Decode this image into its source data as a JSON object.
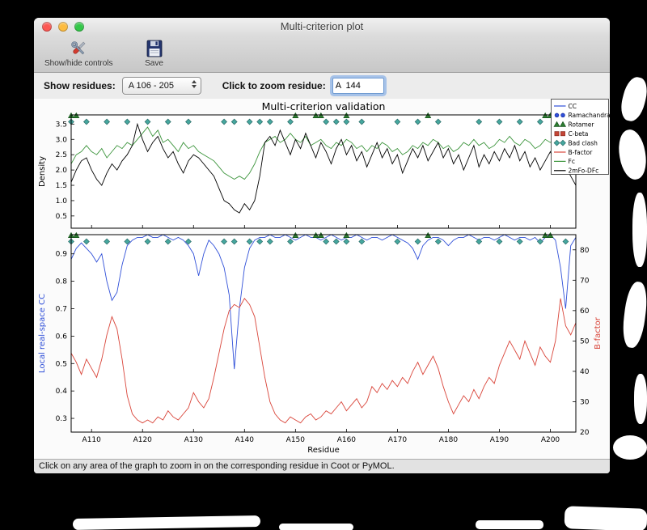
{
  "window": {
    "title": "Multi-criterion plot",
    "traffic_lights": {
      "close": "#fc5753",
      "minimize": "#fdbc40",
      "zoom": "#33c748"
    },
    "toolbar": {
      "show_hide_label": "Show/hide controls",
      "save_label": "Save"
    },
    "controls": {
      "show_residues_label": "Show residues:",
      "residue_range_value": "A 106 - 205",
      "zoom_label": "Click to zoom residue:",
      "zoom_value": "A  144"
    },
    "status_text": "Click on any area of the graph to zoom in on the corresponding residue in Coot or PyMOL."
  },
  "chart_data": {
    "type": "line",
    "title": "Multi-criterion validation",
    "xlabel": "Residue",
    "x_range": [
      106,
      205
    ],
    "x_ticks": [
      {
        "value": 110,
        "label": "A110"
      },
      {
        "value": 120,
        "label": "A120"
      },
      {
        "value": 130,
        "label": "A130"
      },
      {
        "value": 140,
        "label": "A140"
      },
      {
        "value": 150,
        "label": "A150"
      },
      {
        "value": 160,
        "label": "A160"
      },
      {
        "value": 170,
        "label": "A170"
      },
      {
        "value": 180,
        "label": "A180"
      },
      {
        "value": 190,
        "label": "A190"
      },
      {
        "value": 200,
        "label": "A200"
      }
    ],
    "top_plot": {
      "ylabel": "Density",
      "ylim": [
        0.1,
        3.8
      ],
      "yticks": [
        0.5,
        1.0,
        1.5,
        2.0,
        2.5,
        3.0,
        3.5
      ],
      "ytick_labels": [
        "0.5",
        "1.0",
        "1.5",
        "2.0",
        "2.5",
        "3.0",
        "3.5"
      ],
      "series": [
        {
          "name": "Fc",
          "color": "#3d953d",
          "values": [
            2.2,
            2.5,
            2.6,
            2.8,
            2.6,
            2.5,
            2.7,
            2.4,
            2.6,
            2.8,
            2.7,
            2.9,
            2.8,
            3.0,
            3.2,
            3.4,
            3.1,
            3.3,
            2.9,
            3.0,
            2.8,
            2.6,
            2.9,
            2.7,
            2.8,
            2.6,
            2.5,
            2.4,
            2.3,
            2.1,
            1.9,
            1.8,
            1.7,
            1.8,
            1.7,
            1.9,
            2.2,
            2.6,
            2.9,
            3.0,
            3.1,
            2.9,
            3.0,
            3.2,
            3.0,
            2.9,
            3.1,
            2.8,
            2.9,
            3.0,
            2.8,
            2.7,
            2.9,
            2.8,
            3.0,
            2.9,
            2.7,
            2.8,
            2.6,
            2.8,
            2.7,
            2.9,
            2.8,
            2.6,
            2.7,
            2.5,
            2.6,
            2.8,
            2.7,
            2.9,
            2.8,
            3.0,
            2.9,
            2.7,
            2.8,
            2.6,
            2.7,
            2.9,
            2.8,
            3.0,
            2.8,
            2.9,
            2.7,
            2.8,
            3.0,
            2.9,
            3.1,
            2.9,
            2.8,
            3.0,
            2.9,
            2.7,
            2.8,
            3.0,
            2.9,
            3.1,
            2.8,
            2.9,
            2.6,
            2.4
          ]
        },
        {
          "name": "2mFo-DFc",
          "color": "#000000",
          "values": [
            1.6,
            2.0,
            2.3,
            2.4,
            2.0,
            1.7,
            1.5,
            1.9,
            2.2,
            2.0,
            2.3,
            2.5,
            2.8,
            3.5,
            3.0,
            2.6,
            2.9,
            3.1,
            2.7,
            2.4,
            2.6,
            2.2,
            1.9,
            2.3,
            2.5,
            2.4,
            2.2,
            2.0,
            1.8,
            1.4,
            1.0,
            0.9,
            0.7,
            0.6,
            0.9,
            0.7,
            1.0,
            1.8,
            2.9,
            3.1,
            2.8,
            3.3,
            2.9,
            2.5,
            3.0,
            2.7,
            3.2,
            2.8,
            2.4,
            2.9,
            2.6,
            2.2,
            2.7,
            3.0,
            2.5,
            2.8,
            2.3,
            2.6,
            2.1,
            2.5,
            2.9,
            2.4,
            2.7,
            2.2,
            2.5,
            1.9,
            2.3,
            2.7,
            2.4,
            2.8,
            2.3,
            2.6,
            2.9,
            2.4,
            2.7,
            2.2,
            2.5,
            2.0,
            2.4,
            2.8,
            2.1,
            2.5,
            2.2,
            2.6,
            2.3,
            2.7,
            2.4,
            2.8,
            2.3,
            2.6,
            2.1,
            2.4,
            2.0,
            2.3,
            2.6,
            2.2,
            2.5,
            2.1,
            1.8,
            1.5
          ]
        }
      ]
    },
    "bottom_plot": {
      "left_ylabel": "Local real-space CC",
      "left_color": "#2f4fd8",
      "left_ylim": [
        0.25,
        0.97
      ],
      "left_yticks": [
        0.3,
        0.4,
        0.5,
        0.6,
        0.7,
        0.8,
        0.9
      ],
      "left_ytick_labels": [
        "0.3",
        "0.4",
        "0.5",
        "0.6",
        "0.7",
        "0.8",
        "0.9"
      ],
      "right_ylabel": "B-factor",
      "right_color": "#d9453a",
      "right_ylim": [
        20,
        85
      ],
      "right_yticks": [
        20,
        30,
        40,
        50,
        60,
        70,
        80
      ],
      "right_ytick_labels": [
        "20",
        "30",
        "40",
        "50",
        "60",
        "70",
        "80"
      ],
      "series": [
        {
          "name": "CC",
          "axis": "left",
          "color": "#2f4fd8",
          "values": [
            0.88,
            0.92,
            0.94,
            0.92,
            0.9,
            0.87,
            0.9,
            0.8,
            0.73,
            0.76,
            0.86,
            0.93,
            0.95,
            0.96,
            0.96,
            0.97,
            0.96,
            0.96,
            0.97,
            0.96,
            0.95,
            0.96,
            0.95,
            0.93,
            0.9,
            0.82,
            0.9,
            0.95,
            0.93,
            0.9,
            0.85,
            0.75,
            0.48,
            0.7,
            0.85,
            0.92,
            0.95,
            0.96,
            0.96,
            0.97,
            0.96,
            0.96,
            0.97,
            0.96,
            0.95,
            0.96,
            0.97,
            0.96,
            0.96,
            0.95,
            0.96,
            0.97,
            0.96,
            0.95,
            0.96,
            0.96,
            0.97,
            0.96,
            0.95,
            0.96,
            0.96,
            0.95,
            0.96,
            0.97,
            0.96,
            0.95,
            0.94,
            0.92,
            0.88,
            0.93,
            0.95,
            0.96,
            0.96,
            0.95,
            0.93,
            0.95,
            0.96,
            0.96,
            0.97,
            0.96,
            0.95,
            0.96,
            0.96,
            0.95,
            0.96,
            0.97,
            0.96,
            0.95,
            0.96,
            0.96,
            0.95,
            0.96,
            0.94,
            0.96,
            0.97,
            0.95,
            0.85,
            0.7,
            0.93,
            0.96
          ]
        },
        {
          "name": "B-factor",
          "axis": "right",
          "color": "#d9453a",
          "values": [
            46,
            43,
            39,
            44,
            41,
            38,
            44,
            52,
            58,
            54,
            44,
            32,
            26,
            24,
            23,
            24,
            23,
            25,
            24,
            27,
            25,
            24,
            26,
            28,
            33,
            30,
            28,
            31,
            38,
            46,
            54,
            60,
            62,
            61,
            64,
            62,
            58,
            48,
            38,
            30,
            26,
            24,
            23,
            25,
            24,
            23,
            25,
            26,
            24,
            25,
            27,
            26,
            28,
            30,
            27,
            29,
            31,
            28,
            30,
            35,
            33,
            36,
            34,
            37,
            35,
            38,
            36,
            40,
            43,
            39,
            42,
            45,
            41,
            35,
            30,
            26,
            29,
            32,
            30,
            34,
            31,
            35,
            38,
            36,
            42,
            46,
            50,
            47,
            44,
            50,
            46,
            42,
            48,
            45,
            43,
            50,
            64,
            55,
            52,
            56
          ]
        }
      ],
      "markers": [
        {
          "name": "Rotamer",
          "shape": "triangle",
          "color": "#2e7d32",
          "edge": "#14521a",
          "residues": [
            106,
            107,
            150,
            154,
            155,
            160,
            176,
            199,
            200
          ]
        },
        {
          "name": "Bad clash",
          "shape": "diamond",
          "color": "#46a79f",
          "edge": "#2a6b66",
          "residues": [
            106,
            109,
            113,
            117,
            121,
            125,
            129,
            136,
            138,
            141,
            143,
            145,
            149,
            156,
            158,
            160,
            163,
            170,
            174,
            178,
            186,
            190,
            194,
            198,
            203
          ]
        },
        {
          "name": "Ramachandran",
          "shape": "circle",
          "color": "#2f4fd8",
          "edge": "#1c2f9e",
          "residues": []
        },
        {
          "name": "C-beta",
          "shape": "square",
          "color": "#c44536",
          "edge": "#8c2b20",
          "residues": []
        }
      ]
    },
    "legend": {
      "position": "upper right",
      "entries": [
        {
          "label": "CC",
          "type": "line",
          "color": "#2f4fd8"
        },
        {
          "label": "Ramachandran",
          "type": "circle",
          "color": "#2f4fd8",
          "edge": "#1c2f9e"
        },
        {
          "label": "Rotamer",
          "type": "triangle",
          "color": "#2e7d32",
          "edge": "#14521a"
        },
        {
          "label": "C-beta",
          "type": "square",
          "color": "#c44536",
          "edge": "#8c2b20"
        },
        {
          "label": "Bad clash",
          "type": "diamond",
          "color": "#46a79f",
          "edge": "#2a6b66"
        },
        {
          "label": "B-factor",
          "type": "line",
          "color": "#d9453a"
        },
        {
          "label": "Fc",
          "type": "line",
          "color": "#3d953d"
        },
        {
          "label": "2mFo-DFc",
          "type": "line",
          "color": "#000000"
        }
      ]
    }
  }
}
